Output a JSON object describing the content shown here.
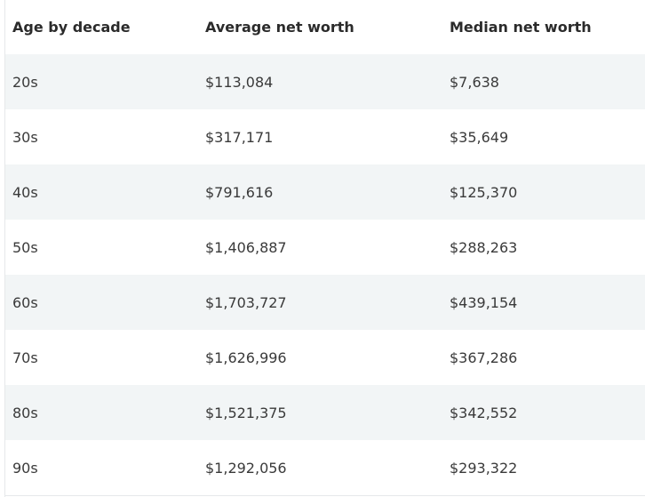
{
  "table": {
    "headers": [
      "Age by decade",
      "Average net worth",
      "Median net worth"
    ],
    "rows": [
      [
        "20s",
        "$113,084",
        "$7,638"
      ],
      [
        "30s",
        "$317,171",
        "$35,649"
      ],
      [
        "40s",
        "$791,616",
        "$125,370"
      ],
      [
        "50s",
        "$1,406,887",
        "$288,263"
      ],
      [
        "60s",
        "$1,703,727",
        "$439,154"
      ],
      [
        "70s",
        "$1,626,996",
        "$367,286"
      ],
      [
        "80s",
        "$1,521,375",
        "$342,552"
      ],
      [
        "90s",
        "$1,292,056",
        "$293,322"
      ]
    ]
  }
}
